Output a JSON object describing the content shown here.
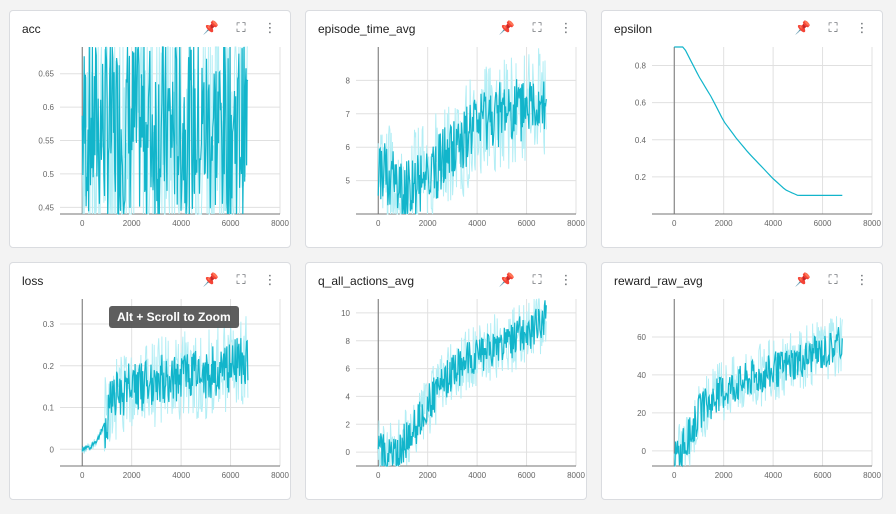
{
  "cards": [
    {
      "title": "acc",
      "pin_icon": "pin-icon",
      "expand_icon": "expand-icon",
      "more_icon": "more-vert-icon"
    },
    {
      "title": "episode_time_avg"
    },
    {
      "title": "epsilon"
    },
    {
      "title": "loss"
    },
    {
      "title": "q_all_actions_avg"
    },
    {
      "title": "reward_raw_avg"
    }
  ],
  "colors": {
    "series": "#12b5cb",
    "smooth_faint": "#b3eef5",
    "axis": "#757575",
    "grid": "#e0e0e0"
  },
  "tooltip": "Alt + Scroll to Zoom",
  "chart_data": [
    {
      "type": "line",
      "title": "acc",
      "x_ticks": [
        "0",
        "2000",
        "4000",
        "6000",
        "8000"
      ],
      "y_ticks": [
        "0.45",
        "0.5",
        "0.55",
        "0.6",
        "0.65"
      ],
      "xlim": [
        -900,
        8000
      ],
      "ylim": [
        0.44,
        0.69
      ],
      "series": [
        {
          "x": [
            0,
            6700
          ],
          "values": [
            0.57,
            0.57
          ]
        }
      ]
    },
    {
      "type": "line",
      "title": "episode_time_avg",
      "x_ticks": [
        "0",
        "2000",
        "4000",
        "6000",
        "8000"
      ],
      "y_ticks": [
        "5",
        "6",
        "7",
        "8"
      ],
      "xlim": [
        -900,
        8000
      ],
      "ylim": [
        4,
        9
      ],
      "series": [
        {
          "x": [
            0,
            1000,
            2000,
            3000,
            4000,
            5000,
            6000,
            6800
          ],
          "values": [
            5.4,
            4.6,
            5.2,
            5.8,
            6.6,
            7.0,
            7.1,
            7.4
          ]
        }
      ]
    },
    {
      "type": "line",
      "title": "epsilon",
      "x_ticks": [
        "0",
        "2000",
        "4000",
        "6000",
        "8000"
      ],
      "y_ticks": [
        "0.2",
        "0.4",
        "0.6",
        "0.8"
      ],
      "xlim": [
        -900,
        8000
      ],
      "ylim": [
        0,
        0.9
      ],
      "series": [
        {
          "x": [
            0,
            500,
            1000,
            1500,
            2000,
            2500,
            3000,
            3500,
            4000,
            4500,
            5000,
            5500,
            6000,
            6500,
            6800
          ],
          "values": [
            1.0,
            0.87,
            0.74,
            0.63,
            0.5,
            0.41,
            0.33,
            0.26,
            0.19,
            0.13,
            0.1,
            0.1,
            0.1,
            0.1,
            0.1
          ]
        }
      ]
    },
    {
      "type": "line",
      "title": "loss",
      "x_ticks": [
        "0",
        "2000",
        "4000",
        "6000",
        "8000"
      ],
      "y_ticks": [
        "0",
        "0.1",
        "0.2",
        "0.3"
      ],
      "xlim": [
        -900,
        8000
      ],
      "ylim": [
        -0.04,
        0.36
      ],
      "series": [
        {
          "x": [
            0,
            300,
            600,
            900,
            1200,
            2000,
            3000,
            4000,
            5000,
            6000,
            6700
          ],
          "values": [
            0,
            0.003,
            0.02,
            0.06,
            0.12,
            0.15,
            0.16,
            0.18,
            0.18,
            0.2,
            0.22
          ]
        }
      ]
    },
    {
      "type": "line",
      "title": "q_all_actions_avg",
      "x_ticks": [
        "0",
        "2000",
        "4000",
        "6000",
        "8000"
      ],
      "y_ticks": [
        "0",
        "2",
        "4",
        "6",
        "8",
        "10"
      ],
      "xlim": [
        -900,
        8000
      ],
      "ylim": [
        -1,
        11
      ],
      "series": [
        {
          "x": [
            0,
            800,
            1500,
            2000,
            3000,
            4000,
            5000,
            6000,
            6800
          ],
          "values": [
            0,
            0,
            1.8,
            3.5,
            5.8,
            7,
            7.8,
            8.6,
            9.6
          ]
        }
      ]
    },
    {
      "type": "line",
      "title": "reward_raw_avg",
      "x_ticks": [
        "0",
        "2000",
        "4000",
        "6000",
        "8000"
      ],
      "y_ticks": [
        "0",
        "20",
        "40",
        "60"
      ],
      "xlim": [
        -900,
        8000
      ],
      "ylim": [
        -8,
        80
      ],
      "series": [
        {
          "x": [
            0,
            500,
            1000,
            2000,
            3000,
            4000,
            5000,
            6000,
            6800
          ],
          "values": [
            -5,
            5,
            20,
            32,
            38,
            42,
            48,
            52,
            57
          ]
        }
      ]
    }
  ]
}
